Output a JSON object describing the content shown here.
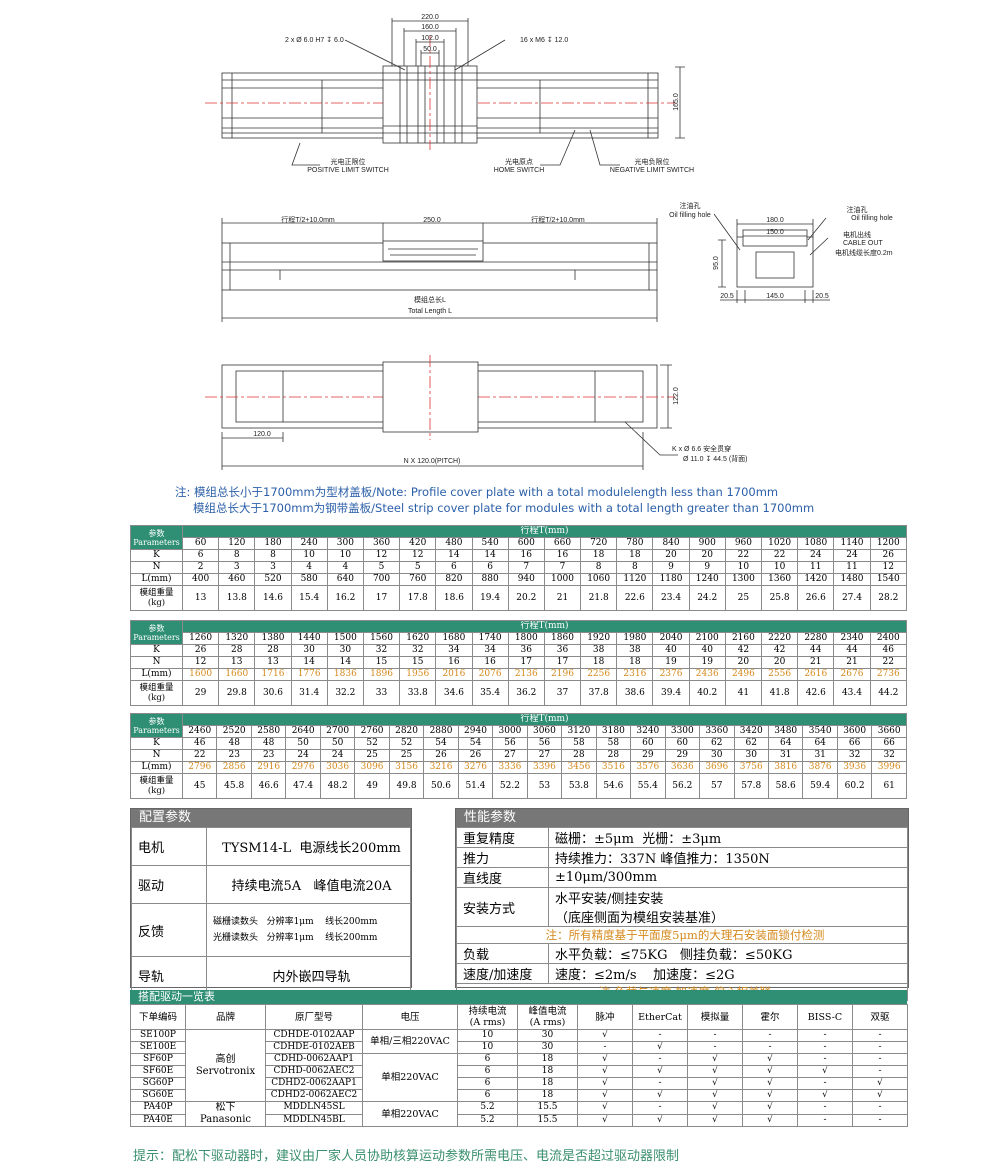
{
  "drawings": {
    "top_view": {
      "dims": [
        "220.0",
        "160.0",
        "102.0",
        "50.0"
      ],
      "hole_note": "2 x Ø 6.0 H7 ↧ 6.0",
      "thread_note": "16 x M6 ↧ 12.0",
      "height": "165.0",
      "positive_limit": [
        "光电正限位",
        "POSITIVE LIMIT SWITCH"
      ],
      "home": [
        "光电原点",
        "HOME SWITCH"
      ],
      "negative_limit": [
        "光电负限位",
        "NEGATIVE LIMIT SWITCH"
      ]
    },
    "side_view": {
      "left_travel": "行程T/2+10.0mm",
      "carriage": "250.0",
      "right_travel": "行程T/2+10.0mm",
      "total_length": [
        "模组总长L",
        "Total Length L"
      ]
    },
    "end_view": {
      "oil_left": [
        "注油孔",
        "Oil filling hole"
      ],
      "oil_right": [
        "注油孔",
        "Oil filling hole"
      ],
      "cable": [
        "电机出线",
        "CABLE OUT",
        "电机线缆长度0.2m"
      ],
      "width": "180.0",
      "inner_width": "150.0",
      "height": "95.0",
      "bottom": [
        "20.5",
        "145.0",
        "20.5"
      ]
    },
    "bottom_view": {
      "height": "122.0",
      "first_hole": "120.0",
      "pitch": "N X 120.0(PITCH)",
      "hole_note": [
        "K x Ø 6.6 安全贯穿",
        "Ø 11.0 ↧ 44.5 (背面)"
      ]
    }
  },
  "notes": [
    "注: 模组总长小于1700mm为型材盖板/Note: Profile cover plate with a total modulelength less than 1700mm",
    "模组总长大于1700mm为钢带盖板/Steel strip cover plate for modules with a total length greater than 1700mm"
  ],
  "param_tables": [
    {
      "corner": [
        "参数",
        "Parameters"
      ],
      "title": "行程T(mm)",
      "T": [
        60,
        120,
        180,
        240,
        300,
        360,
        420,
        480,
        540,
        600,
        660,
        720,
        780,
        840,
        900,
        960,
        1020,
        1080,
        1140,
        1200
      ],
      "rows": [
        {
          "label": [
            "K"
          ],
          "values": [
            6,
            8,
            8,
            10,
            10,
            12,
            12,
            14,
            14,
            16,
            16,
            18,
            18,
            20,
            20,
            22,
            22,
            24,
            24,
            26
          ]
        },
        {
          "label": [
            "N"
          ],
          "values": [
            2,
            3,
            3,
            4,
            4,
            5,
            5,
            6,
            6,
            7,
            7,
            8,
            8,
            9,
            9,
            10,
            10,
            11,
            11,
            12
          ]
        },
        {
          "label": [
            "L(mm)"
          ],
          "values": [
            400,
            460,
            520,
            580,
            640,
            700,
            760,
            820,
            880,
            940,
            1000,
            1060,
            1120,
            1180,
            1240,
            1300,
            1360,
            1420,
            1480,
            1540
          ]
        },
        {
          "label": [
            "模组重量",
            "(kg)"
          ],
          "values": [
            13,
            13.8,
            14.6,
            15.4,
            16.2,
            17,
            17.8,
            18.6,
            19.4,
            20.2,
            21,
            21.8,
            22.6,
            23.4,
            24.2,
            25,
            25.8,
            26.6,
            27.4,
            28.2
          ]
        }
      ]
    },
    {
      "corner": [
        "参数",
        "Parameters"
      ],
      "title": "行程T(mm)",
      "T": [
        1260,
        1320,
        1380,
        1440,
        1500,
        1560,
        1620,
        1680,
        1740,
        1800,
        1860,
        1920,
        1980,
        2040,
        2100,
        2160,
        2220,
        2280,
        2340,
        2400
      ],
      "rows": [
        {
          "label": [
            "K"
          ],
          "values": [
            26,
            28,
            28,
            30,
            30,
            32,
            32,
            34,
            34,
            36,
            36,
            38,
            38,
            40,
            40,
            42,
            42,
            44,
            44,
            46
          ]
        },
        {
          "label": [
            "N"
          ],
          "values": [
            12,
            13,
            13,
            14,
            14,
            15,
            15,
            16,
            16,
            17,
            17,
            18,
            18,
            19,
            19,
            20,
            20,
            21,
            21,
            22
          ]
        },
        {
          "label": [
            "L(mm)"
          ],
          "color": "#d4891c",
          "values": [
            1600,
            1660,
            1716,
            1776,
            1836,
            1896,
            1956,
            2016,
            2076,
            2136,
            2196,
            2256,
            2316,
            2376,
            2436,
            2496,
            2556,
            2616,
            2676,
            2736
          ]
        },
        {
          "label": [
            "模组重量",
            "(kg)"
          ],
          "values": [
            29,
            29.8,
            30.6,
            31.4,
            32.2,
            33,
            33.8,
            34.6,
            35.4,
            36.2,
            37,
            37.8,
            38.6,
            39.4,
            40.2,
            41,
            41.8,
            42.6,
            43.4,
            44.2
          ]
        }
      ]
    },
    {
      "corner": [
        "参数",
        "Parameters"
      ],
      "title": "行程T(mm)",
      "T": [
        2460,
        2520,
        2580,
        2640,
        2700,
        2760,
        2820,
        2880,
        2940,
        3000,
        3060,
        3120,
        3180,
        3240,
        3300,
        3360,
        3420,
        3480,
        3540,
        3600,
        3660
      ],
      "rows": [
        {
          "label": [
            "K"
          ],
          "values": [
            46,
            48,
            48,
            50,
            50,
            52,
            52,
            54,
            54,
            56,
            56,
            58,
            58,
            60,
            60,
            62,
            62,
            64,
            64,
            66,
            66
          ]
        },
        {
          "label": [
            "N"
          ],
          "values": [
            22,
            23,
            23,
            24,
            24,
            25,
            25,
            26,
            26,
            27,
            27,
            28,
            28,
            29,
            29,
            30,
            30,
            31,
            31,
            32,
            32
          ]
        },
        {
          "label": [
            "L(mm)"
          ],
          "color": "#d4891c",
          "values": [
            2796,
            2856,
            2916,
            2976,
            3036,
            3096,
            3156,
            3216,
            3276,
            3336,
            3396,
            3456,
            3516,
            3576,
            3636,
            3696,
            3756,
            3816,
            3876,
            3936,
            3996
          ]
        },
        {
          "label": [
            "模组重量",
            "(kg)"
          ],
          "values": [
            45,
            45.8,
            46.6,
            47.4,
            48.2,
            49,
            49.8,
            50.6,
            51.4,
            52.2,
            53,
            53.8,
            54.6,
            55.4,
            56.2,
            57,
            57.8,
            58.6,
            59.4,
            60.2,
            61
          ]
        }
      ]
    }
  ],
  "config": {
    "title": "配置参数",
    "rows": [
      {
        "label": "电机",
        "text": [
          "TYSM14-L  电源线长200mm"
        ]
      },
      {
        "label": "驱动",
        "text": [
          "持续电流5A   峰值电流20A"
        ]
      },
      {
        "label": "反馈",
        "text": [
          "磁栅读数头   分辨率1μm    线长200mm",
          "光栅读数头   分辨率1μm    线长200mm"
        ]
      },
      {
        "label": "导轨",
        "text": [
          "内外嵌四导轨"
        ]
      }
    ]
  },
  "performance": {
    "title": "性能参数",
    "rows": [
      {
        "label": "重复精度",
        "text": [
          "磁栅：±5μm  光栅：±3μm"
        ]
      },
      {
        "label": "推力",
        "text": [
          "持续推力：337N 峰值推力：1350N"
        ]
      },
      {
        "label": "直线度",
        "text": [
          "±10μm/300mm"
        ]
      },
      {
        "label": "安装方式",
        "text": [
          "水平安装/侧挂安装",
          "（底座侧面为模组安装基准）"
        ]
      },
      {
        "note": "注：所有精度基于平面度5μm的大理石安装面锁付检测"
      },
      {
        "label": "负载",
        "text": [
          "水平负载：≤75KG   侧挂负载：≤50KG"
        ]
      },
      {
        "label": "速度/加速度",
        "text": [
          "速度：≤2m/s    加速度：≤2G"
        ]
      },
      {
        "note": "注:负载与速度,加速度,偏心相关联"
      }
    ]
  },
  "drivers": {
    "title": "搭配驱动一览表",
    "headers": [
      [
        "下单编码"
      ],
      [
        "品牌"
      ],
      [
        "原厂型号"
      ],
      [
        "电压"
      ],
      [
        "持续电流",
        "(A rms)"
      ],
      [
        "峰值电流",
        "(A rms)"
      ],
      [
        "脉冲"
      ],
      [
        "EtherCat"
      ],
      [
        "模拟量"
      ],
      [
        "霍尔"
      ],
      [
        "BISS-C"
      ],
      [
        "双驱"
      ]
    ],
    "groups": [
      {
        "brand": [
          "高创",
          "Servotronix"
        ],
        "voltage_groups": [
          {
            "voltage": "单相/三相220VAC",
            "rows": [
              [
                "SE100P",
                "CDHDE-0102AAP",
                "10",
                "30",
                "√",
                "-",
                "-",
                "-",
                "-",
                "-"
              ],
              [
                "SE100E",
                "CDHDE-0102AEB",
                "10",
                "30",
                "-",
                "√",
                "-",
                "-",
                "-",
                "-"
              ]
            ]
          },
          {
            "voltage": "单相220VAC",
            "rows": [
              [
                "SF60P",
                "CDHD-0062AAP1",
                "6",
                "18",
                "√",
                "-",
                "√",
                "√",
                "-",
                "-"
              ],
              [
                "SF60E",
                "CDHD-0062AEC2",
                "6",
                "18",
                "√",
                "√",
                "√",
                "√",
                "√",
                "-"
              ],
              [
                "SG60P",
                "CDHD2-0062AAP1",
                "6",
                "18",
                "√",
                "-",
                "√",
                "√",
                "-",
                "√"
              ],
              [
                "SG60E",
                "CDHD2-0062AEC2",
                "6",
                "18",
                "√",
                "√",
                "√",
                "√",
                "√",
                "√"
              ]
            ]
          }
        ]
      },
      {
        "brand": [
          "松下",
          "Panasonic"
        ],
        "voltage_groups": [
          {
            "voltage": "单相220VAC",
            "rows": [
              [
                "PA40P",
                "MDDLN45SL",
                "5.2",
                "15.5",
                "√",
                "-",
                "√",
                "√",
                "-",
                "-"
              ],
              [
                "PA40E",
                "MDDLN45BL",
                "5.2",
                "15.5",
                "√",
                "√",
                "√",
                "√",
                "-",
                "-"
              ]
            ]
          }
        ]
      }
    ]
  },
  "footer": "提示：配松下驱动器时，建议由厂家人员协助核算运动参数所需电压、电流是否超过驱动器限制"
}
